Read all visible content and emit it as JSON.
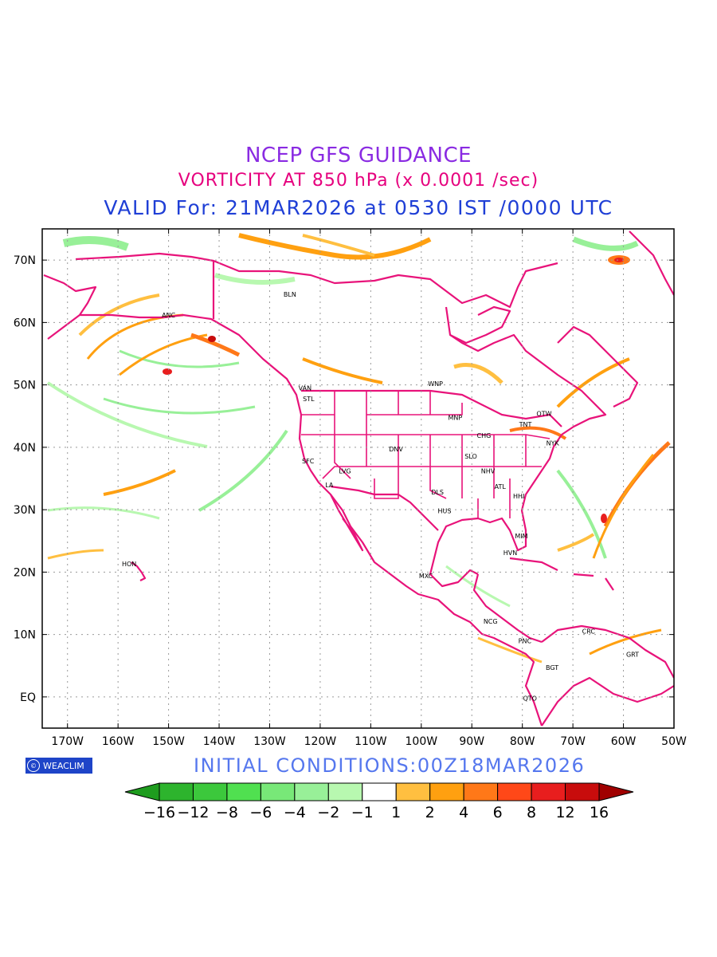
{
  "title_lines": {
    "line1": "NCEP GFS GUIDANCE",
    "line2": "VORTICITY AT 850 hPa (x 0.0001 /sec)",
    "line3": "VALID For: 21MAR2026 at 0530 IST /0000 UTC"
  },
  "map": {
    "lon_range": [
      -175,
      -50
    ],
    "lat_range": [
      -5,
      75
    ],
    "x_ticks": [
      {
        "lon": -170,
        "label": "170W"
      },
      {
        "lon": -160,
        "label": "160W"
      },
      {
        "lon": -150,
        "label": "150W"
      },
      {
        "lon": -140,
        "label": "140W"
      },
      {
        "lon": -130,
        "label": "130W"
      },
      {
        "lon": -120,
        "label": "120W"
      },
      {
        "lon": -110,
        "label": "110W"
      },
      {
        "lon": -100,
        "label": "100W"
      },
      {
        "lon": -90,
        "label": "90W"
      },
      {
        "lon": -80,
        "label": "80W"
      },
      {
        "lon": -70,
        "label": "70W"
      },
      {
        "lon": -60,
        "label": "60W"
      },
      {
        "lon": -50,
        "label": "50W"
      }
    ],
    "y_ticks": [
      {
        "lat": 0,
        "label": "EQ"
      },
      {
        "lat": 10,
        "label": "10N"
      },
      {
        "lat": 20,
        "label": "20N"
      },
      {
        "lat": 30,
        "label": "30N"
      },
      {
        "lat": 40,
        "label": "40N"
      },
      {
        "lat": 50,
        "label": "50N"
      },
      {
        "lat": 60,
        "label": "60N"
      },
      {
        "lat": 70,
        "label": "70N"
      }
    ],
    "grid": true,
    "boundary_color": "#e8137a",
    "cities": [
      {
        "code": "BLN",
        "lon": -126,
        "lat": 64.5
      },
      {
        "code": "ANC",
        "lon": -150,
        "lat": 61.2
      },
      {
        "code": "VAN",
        "lon": -123,
        "lat": 49.5
      },
      {
        "code": "STL",
        "lon": -122.3,
        "lat": 47.8
      },
      {
        "code": "WNP",
        "lon": -97.2,
        "lat": 50.2
      },
      {
        "code": "MNP",
        "lon": -93.3,
        "lat": 44.8
      },
      {
        "code": "TNT",
        "lon": -79.4,
        "lat": 43.7
      },
      {
        "code": "OTW",
        "lon": -75.7,
        "lat": 45.4
      },
      {
        "code": "CHG",
        "lon": -87.6,
        "lat": 41.9
      },
      {
        "code": "NYK",
        "lon": -74,
        "lat": 40.7
      },
      {
        "code": "DNV",
        "lon": -105,
        "lat": 39.7
      },
      {
        "code": "SFC",
        "lon": -122.4,
        "lat": 37.8
      },
      {
        "code": "SLO",
        "lon": -90.2,
        "lat": 38.6
      },
      {
        "code": "LVG",
        "lon": -115.1,
        "lat": 36.2
      },
      {
        "code": "NHV",
        "lon": -86.8,
        "lat": 36.2
      },
      {
        "code": "LA",
        "lon": -118.2,
        "lat": 34.0
      },
      {
        "code": "ATL",
        "lon": -84.4,
        "lat": 33.7
      },
      {
        "code": "DLS",
        "lon": -96.8,
        "lat": 32.8
      },
      {
        "code": "HHI",
        "lon": -80.7,
        "lat": 32.2
      },
      {
        "code": "HUS",
        "lon": -95.4,
        "lat": 29.8
      },
      {
        "code": "MIM",
        "lon": -80.2,
        "lat": 25.8
      },
      {
        "code": "HVN",
        "lon": -82.4,
        "lat": 23.1
      },
      {
        "code": "HON",
        "lon": -157.8,
        "lat": 21.3
      },
      {
        "code": "MXC",
        "lon": -99.1,
        "lat": 19.4
      },
      {
        "code": "NCG",
        "lon": -86.3,
        "lat": 12.1
      },
      {
        "code": "CRC",
        "lon": -66.9,
        "lat": 10.5
      },
      {
        "code": "PNC",
        "lon": -79.5,
        "lat": 9.0
      },
      {
        "code": "GRT",
        "lon": -58.2,
        "lat": 6.8
      },
      {
        "code": "BGT",
        "lon": -74.1,
        "lat": 4.7
      },
      {
        "code": "QTO",
        "lon": -78.5,
        "lat": -0.2
      }
    ]
  },
  "badge": {
    "logo": "©",
    "text": "WEACLIM"
  },
  "initial_conditions": "INITIAL  CONDITIONS:00Z18MAR2026",
  "colorbar": {
    "labels": [
      "-16",
      "-12",
      "-8",
      "-6",
      "-4",
      "-2",
      "-1",
      "1",
      "2",
      "4",
      "6",
      "8",
      "12",
      "16"
    ],
    "colors": [
      "#1e9c1e",
      "#2db42d",
      "#3cc83c",
      "#50e050",
      "#78e878",
      "#98f098",
      "#b8f8b0",
      "#ffffff",
      "#ffbf40",
      "#ffa010",
      "#ff7818",
      "#ff4818",
      "#e81e1e",
      "#c80c0c",
      "#a00000"
    ]
  }
}
